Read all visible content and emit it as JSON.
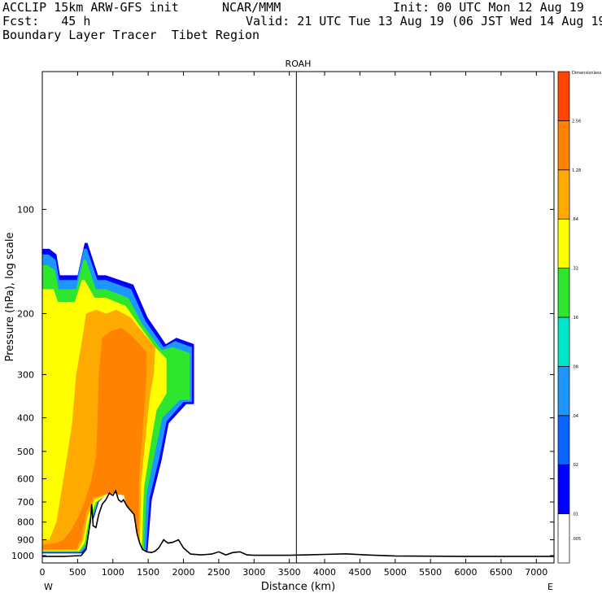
{
  "header": {
    "model": "ACCLIP 15km ARW-GFS init",
    "org": "NCAR/MMM",
    "init": "Init: 00 UTC Mon 12 Aug 19",
    "fcst": "Fcst:   45 h",
    "valid": "Valid: 21 UTC Tue 13 Aug 19 (06 JST Wed 14 Aug 19)",
    "field": "Boundary Layer Tracer  Tibet Region"
  },
  "chart_data": {
    "type": "heatmap",
    "title": "ROAH",
    "xlabel": "Distance (km)",
    "ylabel": "Pressure (hPa), log scale",
    "x_ticks": [
      0,
      500,
      1000,
      1500,
      2000,
      2500,
      3000,
      3500,
      4000,
      4500,
      5000,
      5500,
      6000,
      6500,
      7000
    ],
    "y_ticks": [
      100,
      200,
      300,
      400,
      500,
      600,
      700,
      800,
      900,
      1000
    ],
    "xlim": [
      0,
      7250
    ],
    "ylim_hpa": [
      1050,
      40
    ],
    "y_scale": "log",
    "left_end": "W",
    "right_end": "E",
    "marker_line_km": 3600,
    "colorbar": {
      "unit_label": "Dimensionless",
      "levels": [
        ".005",
        ".01",
        ".02",
        ".04",
        ".08",
        ".16",
        ".32",
        ".64",
        "1.28",
        "2.56"
      ],
      "colors": [
        "#ffffff",
        "#0000ff",
        "#0a64ff",
        "#1e96ff",
        "#00e6c8",
        "#2ee62e",
        "#ffff00",
        "#ffaa00",
        "#ff8200",
        "#ff4600"
      ]
    },
    "terrain": [
      [
        0,
        1005
      ],
      [
        300,
        1005
      ],
      [
        550,
        1000
      ],
      [
        620,
        960
      ],
      [
        680,
        800
      ],
      [
        700,
        710
      ],
      [
        720,
        820
      ],
      [
        760,
        830
      ],
      [
        800,
        760
      ],
      [
        850,
        710
      ],
      [
        900,
        690
      ],
      [
        950,
        660
      ],
      [
        1000,
        670
      ],
      [
        1040,
        650
      ],
      [
        1080,
        690
      ],
      [
        1120,
        700
      ],
      [
        1150,
        690
      ],
      [
        1200,
        720
      ],
      [
        1250,
        740
      ],
      [
        1300,
        760
      ],
      [
        1340,
        860
      ],
      [
        1380,
        920
      ],
      [
        1420,
        960
      ],
      [
        1480,
        975
      ],
      [
        1550,
        980
      ],
      [
        1600,
        970
      ],
      [
        1650,
        950
      ],
      [
        1720,
        900
      ],
      [
        1780,
        920
      ],
      [
        1850,
        915
      ],
      [
        1930,
        900
      ],
      [
        2000,
        950
      ],
      [
        2100,
        990
      ],
      [
        2250,
        995
      ],
      [
        2400,
        990
      ],
      [
        2500,
        975
      ],
      [
        2600,
        995
      ],
      [
        2700,
        980
      ],
      [
        2800,
        975
      ],
      [
        2900,
        995
      ],
      [
        3000,
        998
      ],
      [
        3500,
        998
      ],
      [
        4000,
        992
      ],
      [
        4300,
        988
      ],
      [
        4600,
        996
      ],
      [
        5000,
        1002
      ],
      [
        6000,
        1005
      ],
      [
        7250,
        1005
      ]
    ],
    "tracer_regions": [
      {
        "level": ".005",
        "pts": [
          [
            0,
            990
          ],
          [
            560,
            990
          ],
          [
            660,
            950
          ],
          [
            700,
            820
          ],
          [
            800,
            700
          ],
          [
            1000,
            630
          ],
          [
            1200,
            640
          ],
          [
            1330,
            720
          ],
          [
            1420,
            980
          ],
          [
            1500,
            980
          ],
          [
            1560,
            700
          ],
          [
            1700,
            540
          ],
          [
            1800,
            420
          ],
          [
            2050,
            370
          ],
          [
            2170,
            370
          ],
          [
            2170,
            240
          ],
          [
            1900,
            230
          ],
          [
            1750,
            240
          ],
          [
            1500,
            200
          ],
          [
            1300,
            160
          ],
          [
            900,
            150
          ],
          [
            800,
            150
          ],
          [
            650,
            120
          ],
          [
            600,
            120
          ],
          [
            500,
            150
          ],
          [
            250,
            150
          ],
          [
            200,
            130
          ],
          [
            100,
            125
          ],
          [
            0,
            125
          ]
        ]
      },
      {
        "level": ".01",
        "pts": [
          [
            0,
            985
          ],
          [
            560,
            985
          ],
          [
            660,
            945
          ],
          [
            700,
            815
          ],
          [
            800,
            700
          ],
          [
            1000,
            635
          ],
          [
            1200,
            645
          ],
          [
            1320,
            725
          ],
          [
            1420,
            975
          ],
          [
            1490,
            975
          ],
          [
            1550,
            690
          ],
          [
            1690,
            530
          ],
          [
            1790,
            415
          ],
          [
            2040,
            365
          ],
          [
            2150,
            365
          ],
          [
            2150,
            245
          ],
          [
            1900,
            235
          ],
          [
            1750,
            245
          ],
          [
            1490,
            205
          ],
          [
            1290,
            165
          ],
          [
            900,
            155
          ],
          [
            790,
            155
          ],
          [
            640,
            125
          ],
          [
            600,
            125
          ],
          [
            500,
            155
          ],
          [
            250,
            155
          ],
          [
            200,
            135
          ],
          [
            100,
            130
          ],
          [
            0,
            130
          ]
        ]
      },
      {
        "level": ".04",
        "pts": [
          [
            0,
            980
          ],
          [
            550,
            980
          ],
          [
            640,
            940
          ],
          [
            690,
            810
          ],
          [
            790,
            700
          ],
          [
            1000,
            640
          ],
          [
            1200,
            650
          ],
          [
            1310,
            730
          ],
          [
            1410,
            970
          ],
          [
            1470,
            970
          ],
          [
            1520,
            680
          ],
          [
            1660,
            520
          ],
          [
            1760,
            410
          ],
          [
            2000,
            360
          ],
          [
            2120,
            360
          ],
          [
            2120,
            250
          ],
          [
            1880,
            240
          ],
          [
            1720,
            250
          ],
          [
            1460,
            210
          ],
          [
            1260,
            170
          ],
          [
            900,
            160
          ],
          [
            780,
            160
          ],
          [
            630,
            130
          ],
          [
            590,
            130
          ],
          [
            490,
            160
          ],
          [
            240,
            160
          ],
          [
            190,
            140
          ],
          [
            90,
            135
          ],
          [
            0,
            135
          ]
        ]
      },
      {
        "level": ".16",
        "pts": [
          [
            0,
            975
          ],
          [
            540,
            975
          ],
          [
            620,
            930
          ],
          [
            680,
            800
          ],
          [
            780,
            700
          ],
          [
            1000,
            645
          ],
          [
            1200,
            655
          ],
          [
            1300,
            740
          ],
          [
            1400,
            965
          ],
          [
            1440,
            965
          ],
          [
            1480,
            660
          ],
          [
            1600,
            500
          ],
          [
            1700,
            400
          ],
          [
            1950,
            355
          ],
          [
            2090,
            355
          ],
          [
            2090,
            260
          ],
          [
            1850,
            250
          ],
          [
            1690,
            255
          ],
          [
            1420,
            215
          ],
          [
            1220,
            180
          ],
          [
            900,
            170
          ],
          [
            760,
            170
          ],
          [
            620,
            140
          ],
          [
            580,
            140
          ],
          [
            480,
            170
          ],
          [
            230,
            170
          ],
          [
            180,
            150
          ],
          [
            80,
            145
          ],
          [
            0,
            145
          ]
        ]
      },
      {
        "level": ".32",
        "pts": [
          [
            0,
            970
          ],
          [
            520,
            970
          ],
          [
            600,
            920
          ],
          [
            660,
            790
          ],
          [
            760,
            700
          ],
          [
            1000,
            650
          ],
          [
            1200,
            660
          ],
          [
            1280,
            760
          ],
          [
            1380,
            960
          ],
          [
            1410,
            960
          ],
          [
            1440,
            640
          ],
          [
            1540,
            470
          ],
          [
            1620,
            380
          ],
          [
            1760,
            340
          ],
          [
            1760,
            270
          ],
          [
            1600,
            250
          ],
          [
            1400,
            220
          ],
          [
            1180,
            190
          ],
          [
            900,
            180
          ],
          [
            740,
            180
          ],
          [
            600,
            160
          ],
          [
            560,
            160
          ],
          [
            460,
            185
          ],
          [
            220,
            185
          ],
          [
            160,
            170
          ],
          [
            0,
            170
          ]
        ]
      },
      {
        "level": ".64",
        "pts": [
          [
            0,
            965
          ],
          [
            500,
            965
          ],
          [
            580,
            900
          ],
          [
            640,
            770
          ],
          [
            740,
            690
          ],
          [
            980,
            655
          ],
          [
            1180,
            665
          ],
          [
            1250,
            790
          ],
          [
            1350,
            955
          ],
          [
            1380,
            955
          ],
          [
            1400,
            620
          ],
          [
            1480,
            420
          ],
          [
            1530,
            340
          ],
          [
            1580,
            300
          ],
          [
            1600,
            250
          ],
          [
            1450,
            230
          ],
          [
            1250,
            205
          ],
          [
            1050,
            195
          ],
          [
            900,
            200
          ],
          [
            760,
            195
          ],
          [
            620,
            200
          ],
          [
            560,
            240
          ],
          [
            480,
            300
          ],
          [
            420,
            420
          ],
          [
            300,
            600
          ],
          [
            200,
            800
          ],
          [
            100,
            900
          ],
          [
            0,
            900
          ]
        ]
      },
      {
        "level": "1.28",
        "pts": [
          [
            0,
            960
          ],
          [
            480,
            960
          ],
          [
            560,
            880
          ],
          [
            620,
            750
          ],
          [
            720,
            680
          ],
          [
            960,
            660
          ],
          [
            1160,
            670
          ],
          [
            1230,
            810
          ],
          [
            1330,
            950
          ],
          [
            1360,
            950
          ],
          [
            1370,
            600
          ],
          [
            1420,
            440
          ],
          [
            1450,
            360
          ],
          [
            1480,
            300
          ],
          [
            1480,
            260
          ],
          [
            1380,
            245
          ],
          [
            1250,
            230
          ],
          [
            1120,
            220
          ],
          [
            960,
            225
          ],
          [
            850,
            235
          ],
          [
            800,
            300
          ],
          [
            780,
            420
          ],
          [
            760,
            520
          ],
          [
            700,
            600
          ],
          [
            600,
            700
          ],
          [
            500,
            780
          ],
          [
            400,
            850
          ],
          [
            300,
            900
          ],
          [
            200,
            920
          ],
          [
            0,
            930
          ]
        ]
      }
    ]
  }
}
